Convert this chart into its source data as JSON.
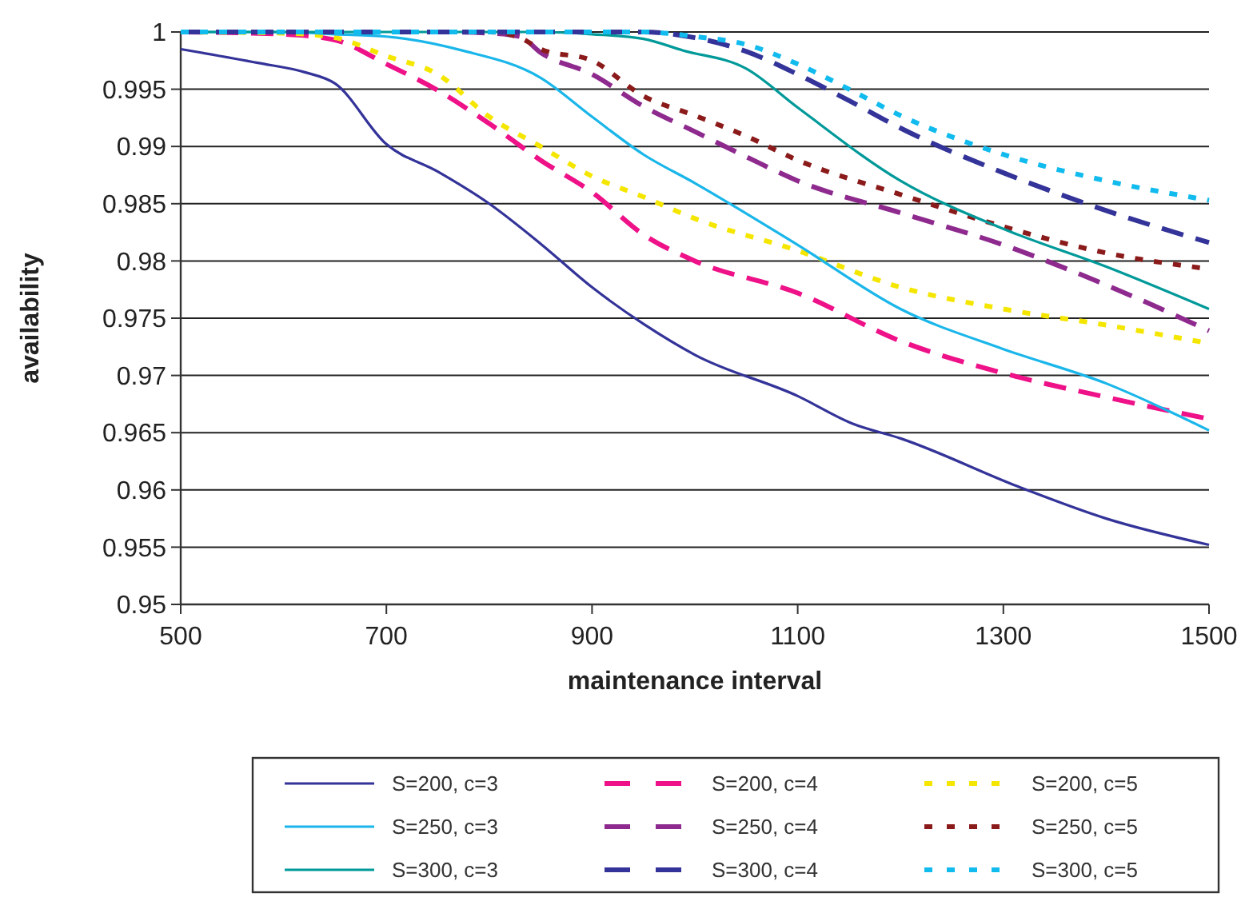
{
  "chart_data": {
    "type": "line",
    "xlabel": "maintenance interval",
    "ylabel": "availability",
    "xlim": [
      500,
      1500
    ],
    "xticks": [
      500,
      700,
      900,
      1100,
      1300,
      1500
    ],
    "ylim": [
      0.95,
      1
    ],
    "yticks": [
      0.95,
      0.955,
      0.96,
      0.965,
      0.97,
      0.975,
      0.98,
      0.985,
      0.99,
      0.995,
      1
    ],
    "grid": "y",
    "legend": "bottom",
    "marker": "none",
    "series": [
      {
        "name": "S=200, c=3",
        "color": "#333399",
        "line_style": "solid",
        "x": [
          500,
          575,
          620,
          650,
          700,
          750,
          800,
          850,
          900,
          950,
          1000,
          1100,
          1153,
          1200,
          1317,
          1400,
          1500
        ],
        "values": [
          0.9985,
          0.9973,
          0.9965,
          0.9955,
          0.9902,
          0.9878,
          0.985,
          0.9815,
          0.9777,
          0.9745,
          0.9718,
          0.9682,
          0.9658,
          0.9645,
          0.9602,
          0.9575,
          0.9552
        ]
      },
      {
        "name": "S=200, c=4",
        "color": "#ee1188",
        "line_style": "dashed",
        "x": [
          500,
          600,
          650,
          700,
          750,
          800,
          850,
          900,
          950,
          1000,
          1100,
          1200,
          1300,
          1400,
          1500
        ],
        "values": [
          1,
          0.9998,
          0.9993,
          0.9972,
          0.9949,
          0.992,
          0.9888,
          0.986,
          0.9823,
          0.98,
          0.9772,
          0.973,
          0.9702,
          0.9681,
          0.9662
        ]
      },
      {
        "name": "S=200, c=5",
        "color": "#f5e600",
        "line_style": "dotted",
        "x": [
          500,
          600,
          650,
          700,
          750,
          800,
          850,
          900,
          950,
          1000,
          1100,
          1200,
          1300,
          1400,
          1500
        ],
        "values": [
          1,
          0.9999,
          0.9995,
          0.9979,
          0.9963,
          0.9926,
          0.99,
          0.9874,
          0.9856,
          0.9837,
          0.9809,
          0.9777,
          0.9758,
          0.9744,
          0.9728
        ]
      },
      {
        "name": "S=250, c=3",
        "color": "#1ab6ea",
        "line_style": "solid",
        "x": [
          500,
          600,
          650,
          700,
          773,
          850,
          900,
          950,
          1000,
          1100,
          1200,
          1300,
          1400,
          1500
        ],
        "values": [
          1,
          1,
          0.9998,
          0.9996,
          0.9984,
          0.996,
          0.9926,
          0.9893,
          0.9868,
          0.9814,
          0.9758,
          0.9723,
          0.9693,
          0.9652
        ]
      },
      {
        "name": "S=250, c=4",
        "color": "#8e2a8e",
        "line_style": "dashed",
        "x": [
          500,
          750,
          800,
          830,
          850,
          900,
          950,
          1000,
          1050,
          1100,
          1200,
          1300,
          1400,
          1500
        ],
        "values": [
          1,
          1,
          0.9999,
          0.9996,
          0.9982,
          0.9963,
          0.9935,
          0.9913,
          0.9891,
          0.987,
          0.9842,
          0.9814,
          0.9779,
          0.9739
        ]
      },
      {
        "name": "S=250, c=5",
        "color": "#8b1a1a",
        "line_style": "dotted",
        "x": [
          500,
          800,
          830,
          850,
          900,
          950,
          1000,
          1050,
          1100,
          1200,
          1300,
          1400,
          1500
        ],
        "values": [
          1,
          1,
          0.9995,
          0.9985,
          0.9975,
          0.9944,
          0.9927,
          0.9909,
          0.9888,
          0.9858,
          0.983,
          0.9807,
          0.9793
        ]
      },
      {
        "name": "S=300, c=3",
        "color": "#009999",
        "line_style": "solid",
        "x": [
          500,
          850,
          900,
          950,
          988,
          1050,
          1100,
          1200,
          1300,
          1400,
          1500
        ],
        "values": [
          1,
          1,
          0.9998,
          0.9994,
          0.9984,
          0.9968,
          0.9934,
          0.987,
          0.9828,
          0.9795,
          0.9758
        ]
      },
      {
        "name": "S=300, c=4",
        "color": "#333399",
        "line_style": "dashed",
        "x": [
          500,
          950,
          1000,
          1050,
          1100,
          1150,
          1200,
          1300,
          1400,
          1500
        ],
        "values": [
          1,
          1,
          0.9995,
          0.9983,
          0.9963,
          0.994,
          0.9916,
          0.9877,
          0.9844,
          0.9816
        ]
      },
      {
        "name": "S=300, c=5",
        "color": "#11bbee",
        "line_style": "dotted",
        "x": [
          500,
          950,
          1000,
          1050,
          1100,
          1150,
          1200,
          1300,
          1400,
          1500
        ],
        "values": [
          1,
          1,
          0.9996,
          0.9989,
          0.9972,
          0.995,
          0.9927,
          0.9893,
          0.987,
          0.9853
        ]
      }
    ]
  }
}
